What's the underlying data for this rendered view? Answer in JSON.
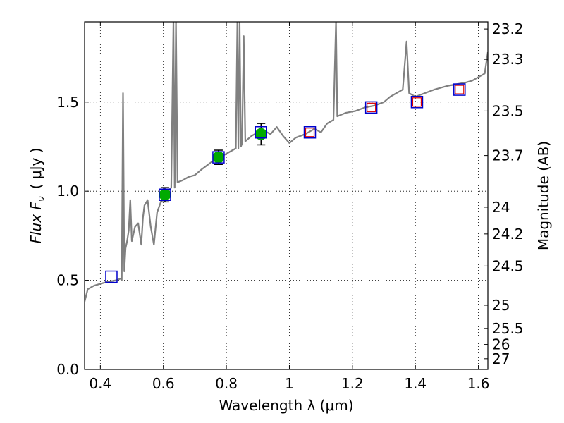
{
  "chart_data": {
    "type": "line",
    "xlabel": "Wavelength  λ (μm)",
    "ylabel": "Flux  F",
    "ylabel_sub": "ν",
    "ylabel_unit": "( μJy )",
    "y2label": "Magnitude (AB)",
    "xlim": [
      0.35,
      1.63
    ],
    "ylim": [
      0.0,
      1.95
    ],
    "grid": true,
    "x_ticks": [
      0.4,
      0.6,
      0.8,
      1.0,
      1.2,
      1.4,
      1.6
    ],
    "x_tick_labels": [
      "0.4",
      "0.6",
      "0.8",
      "1",
      "1.2",
      "1.4",
      "1.6"
    ],
    "y_ticks": [
      0.0,
      0.5,
      1.0,
      1.5
    ],
    "y_tick_labels": [
      "0.0",
      "0.5",
      "1.0",
      "1.5"
    ],
    "y2_ticks": [
      {
        "label": "23.2",
        "flux": 1.91
      },
      {
        "label": "23.3",
        "flux": 1.74
      },
      {
        "label": "23.5",
        "flux": 1.45
      },
      {
        "label": "23.7",
        "flux": 1.2
      },
      {
        "label": "24",
        "flux": 0.91
      },
      {
        "label": "24.2",
        "flux": 0.76
      },
      {
        "label": "24.5",
        "flux": 0.58
      },
      {
        "label": "25",
        "flux": 0.36
      },
      {
        "label": "25.5",
        "flux": 0.23
      },
      {
        "label": "26",
        "flux": 0.14
      },
      {
        "label": "27",
        "flux": 0.06
      }
    ],
    "series": [
      {
        "kind": "line",
        "color": "#808080",
        "points": [
          [
            0.35,
            0.38
          ],
          [
            0.36,
            0.45
          ],
          [
            0.38,
            0.47
          ],
          [
            0.4,
            0.48
          ],
          [
            0.42,
            0.49
          ],
          [
            0.45,
            0.5
          ],
          [
            0.465,
            0.51
          ],
          [
            0.468,
            0.5
          ],
          [
            0.472,
            1.55
          ],
          [
            0.476,
            0.55
          ],
          [
            0.48,
            0.68
          ],
          [
            0.485,
            0.72
          ],
          [
            0.49,
            0.78
          ],
          [
            0.495,
            0.95
          ],
          [
            0.5,
            0.72
          ],
          [
            0.51,
            0.8
          ],
          [
            0.52,
            0.82
          ],
          [
            0.53,
            0.7
          ],
          [
            0.535,
            0.85
          ],
          [
            0.54,
            0.92
          ],
          [
            0.55,
            0.95
          ],
          [
            0.56,
            0.8
          ],
          [
            0.565,
            0.75
          ],
          [
            0.57,
            0.7
          ],
          [
            0.58,
            0.88
          ],
          [
            0.6,
            0.98
          ],
          [
            0.615,
            1.0
          ],
          [
            0.625,
            1.02
          ],
          [
            0.632,
            1.98
          ],
          [
            0.636,
            1.02
          ],
          [
            0.64,
            1.98
          ],
          [
            0.645,
            1.05
          ],
          [
            0.66,
            1.06
          ],
          [
            0.68,
            1.08
          ],
          [
            0.7,
            1.09
          ],
          [
            0.72,
            1.12
          ],
          [
            0.75,
            1.16
          ],
          [
            0.78,
            1.19
          ],
          [
            0.8,
            1.21
          ],
          [
            0.82,
            1.23
          ],
          [
            0.83,
            1.24
          ],
          [
            0.835,
            1.98
          ],
          [
            0.838,
            1.24
          ],
          [
            0.842,
            1.98
          ],
          [
            0.846,
            1.25
          ],
          [
            0.85,
            1.27
          ],
          [
            0.855,
            1.87
          ],
          [
            0.86,
            1.28
          ],
          [
            0.88,
            1.31
          ],
          [
            0.9,
            1.33
          ],
          [
            0.92,
            1.34
          ],
          [
            0.94,
            1.32
          ],
          [
            0.96,
            1.36
          ],
          [
            0.98,
            1.31
          ],
          [
            1.0,
            1.27
          ],
          [
            1.02,
            1.3
          ],
          [
            1.05,
            1.32
          ],
          [
            1.08,
            1.35
          ],
          [
            1.1,
            1.33
          ],
          [
            1.12,
            1.38
          ],
          [
            1.14,
            1.4
          ],
          [
            1.148,
            1.98
          ],
          [
            1.152,
            1.42
          ],
          [
            1.18,
            1.44
          ],
          [
            1.21,
            1.45
          ],
          [
            1.24,
            1.47
          ],
          [
            1.27,
            1.48
          ],
          [
            1.3,
            1.5
          ],
          [
            1.32,
            1.53
          ],
          [
            1.34,
            1.55
          ],
          [
            1.36,
            1.57
          ],
          [
            1.372,
            1.84
          ],
          [
            1.38,
            1.55
          ],
          [
            1.4,
            1.53
          ],
          [
            1.43,
            1.55
          ],
          [
            1.46,
            1.57
          ],
          [
            1.5,
            1.59
          ],
          [
            1.53,
            1.6
          ],
          [
            1.56,
            1.61
          ],
          [
            1.58,
            1.62
          ],
          [
            1.6,
            1.64
          ],
          [
            1.62,
            1.66
          ],
          [
            1.63,
            1.78
          ]
        ]
      },
      {
        "kind": "filled-circles",
        "color": "#00aa00",
        "points": [
          {
            "x": 0.605,
            "y": 0.98,
            "err": 0.04
          },
          {
            "x": 0.775,
            "y": 1.19,
            "err": 0.04
          },
          {
            "x": 0.91,
            "y": 1.32,
            "err": 0.06
          }
        ]
      },
      {
        "kind": "open-squares-outer",
        "color": "#0000cc",
        "points": [
          {
            "x": 0.435,
            "y": 0.52
          },
          {
            "x": 0.605,
            "y": 0.98
          },
          {
            "x": 0.775,
            "y": 1.19
          },
          {
            "x": 0.91,
            "y": 1.33
          },
          {
            "x": 1.065,
            "y": 1.33
          },
          {
            "x": 1.26,
            "y": 1.47
          },
          {
            "x": 1.405,
            "y": 1.5
          },
          {
            "x": 1.54,
            "y": 1.57
          }
        ]
      },
      {
        "kind": "open-squares-inner",
        "color": "#dd0000",
        "points": [
          {
            "x": 1.065,
            "y": 1.33
          },
          {
            "x": 1.26,
            "y": 1.47
          },
          {
            "x": 1.405,
            "y": 1.5
          },
          {
            "x": 1.54,
            "y": 1.57
          }
        ]
      }
    ]
  }
}
